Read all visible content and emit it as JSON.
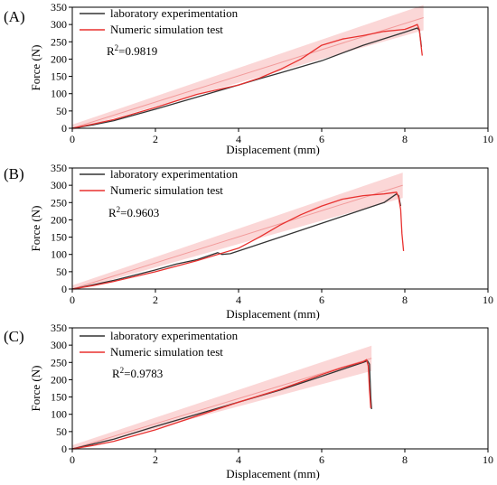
{
  "chart_data": [
    {
      "type": "line",
      "panel_label": "(A)",
      "xlabel": "Displacement (mm)",
      "ylabel": "Force (N)",
      "xlim": [
        0,
        10
      ],
      "ylim": [
        0,
        350
      ],
      "xticks": [
        0,
        2,
        4,
        6,
        8,
        10
      ],
      "yticks": [
        0,
        50,
        100,
        150,
        200,
        250,
        300,
        350
      ],
      "annotation": {
        "prefix": "R",
        "sup": "2",
        "value": "=0.9819"
      },
      "fit_band": {
        "x": [
          0,
          8.45
        ],
        "y": [
          0,
          320
        ]
      },
      "series": [
        {
          "name": "laboratory experimentation",
          "color": "#333333",
          "x": [
            0,
            0.5,
            1,
            2,
            3,
            3.5,
            4,
            4.5,
            5,
            6,
            7,
            8,
            8.3,
            8.35,
            8.38,
            8.4
          ],
          "y": [
            0,
            10,
            22,
            55,
            90,
            108,
            125,
            143,
            160,
            195,
            240,
            278,
            290,
            283,
            255,
            235
          ]
        },
        {
          "name": "Numeric simulation test",
          "color": "#e8312f",
          "x": [
            0,
            0.5,
            1,
            2,
            3,
            4,
            4.5,
            5,
            5.5,
            6,
            6.5,
            7,
            7.5,
            8,
            8.2,
            8.3,
            8.35,
            8.38,
            8.42
          ],
          "y": [
            0,
            12,
            25,
            60,
            98,
            125,
            145,
            170,
            200,
            240,
            258,
            268,
            280,
            286,
            295,
            300,
            285,
            250,
            210
          ]
        }
      ]
    },
    {
      "type": "line",
      "panel_label": "(B)",
      "xlabel": "Displacement (mm)",
      "ylabel": "Force (N)",
      "xlim": [
        0,
        10
      ],
      "ylim": [
        0,
        350
      ],
      "xticks": [
        0,
        2,
        4,
        6,
        8,
        10
      ],
      "yticks": [
        0,
        50,
        100,
        150,
        200,
        250,
        300,
        350
      ],
      "annotation": {
        "prefix": "R",
        "sup": "2",
        "value": "=0.9603"
      },
      "fit_band": {
        "x": [
          0,
          7.95
        ],
        "y": [
          0,
          300
        ]
      },
      "series": [
        {
          "name": "laboratory experimentation",
          "color": "#333333",
          "x": [
            0,
            0.5,
            1,
            2,
            2.5,
            3,
            3.5,
            3.6,
            3.8,
            4,
            5,
            6,
            7,
            7.5,
            7.8,
            7.85,
            7.9
          ],
          "y": [
            0,
            12,
            25,
            55,
            72,
            85,
            105,
            100,
            102,
            110,
            150,
            190,
            230,
            250,
            275,
            270,
            240
          ]
        },
        {
          "name": "Numeric simulation test",
          "color": "#e8312f",
          "x": [
            0,
            0.5,
            1,
            2,
            3,
            4,
            4.5,
            5,
            5.5,
            6,
            6.5,
            7,
            7.5,
            7.8,
            7.85,
            7.9,
            7.93,
            7.97
          ],
          "y": [
            0,
            10,
            22,
            50,
            82,
            118,
            150,
            185,
            215,
            240,
            260,
            270,
            275,
            280,
            265,
            230,
            160,
            110
          ]
        }
      ]
    },
    {
      "type": "line",
      "panel_label": "(C)",
      "xlabel": "Displacement (mm)",
      "ylabel": "Force (N)",
      "xlim": [
        0,
        10
      ],
      "ylim": [
        0,
        350
      ],
      "xticks": [
        0,
        2,
        4,
        6,
        8,
        10
      ],
      "yticks": [
        0,
        50,
        100,
        150,
        200,
        250,
        300,
        350
      ],
      "annotation": {
        "prefix": "R",
        "sup": "2",
        "value": "=0.9783"
      },
      "fit_band": {
        "x": [
          0,
          7.2
        ],
        "y": [
          0,
          262
        ]
      },
      "series": [
        {
          "name": "laboratory experimentation",
          "color": "#333333",
          "x": [
            0,
            0.5,
            1,
            2,
            3,
            4,
            5,
            6,
            6.5,
            7,
            7.1,
            7.15,
            7.18,
            7.2
          ],
          "y": [
            0,
            14,
            28,
            65,
            100,
            135,
            170,
            210,
            230,
            250,
            255,
            245,
            150,
            115
          ]
        },
        {
          "name": "Numeric simulation test",
          "color": "#e8312f",
          "x": [
            0,
            0.5,
            1,
            2,
            3,
            4,
            5,
            6,
            6.5,
            7,
            7.08,
            7.12,
            7.15,
            7.18
          ],
          "y": [
            0,
            10,
            22,
            55,
            95,
            135,
            172,
            215,
            235,
            252,
            258,
            240,
            170,
            118
          ]
        }
      ]
    }
  ]
}
